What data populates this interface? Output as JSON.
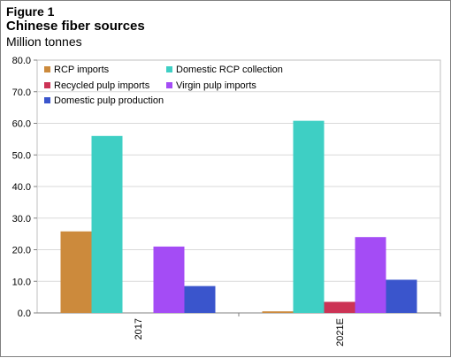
{
  "header": {
    "figure_label": "Figure 1",
    "title": "Chinese fiber sources",
    "subtitle": "Million tonnes"
  },
  "chart_data": {
    "type": "bar",
    "categories": [
      "2017",
      "2021E"
    ],
    "series": [
      {
        "name": "RCP imports",
        "values": [
          25.8,
          0.5
        ],
        "color": "#CC8A3C"
      },
      {
        "name": "Domestic RCP collection",
        "values": [
          56.0,
          60.8
        ],
        "color": "#3ECFC4"
      },
      {
        "name": "Recycled pulp imports",
        "values": [
          0.0,
          3.5
        ],
        "color": "#CC3355"
      },
      {
        "name": "Virgin pulp imports",
        "values": [
          21.0,
          24.0
        ],
        "color": "#A44CF5"
      },
      {
        "name": "Domestic pulp production",
        "values": [
          8.5,
          10.5
        ],
        "color": "#3A55CC"
      }
    ],
    "yticks": [
      "0.0",
      "10.0",
      "20.0",
      "30.0",
      "40.0",
      "50.0",
      "60.0",
      "70.0",
      "80.0"
    ],
    "ylim": [
      0,
      80
    ],
    "grid": true,
    "legend_position": "top-inside"
  }
}
